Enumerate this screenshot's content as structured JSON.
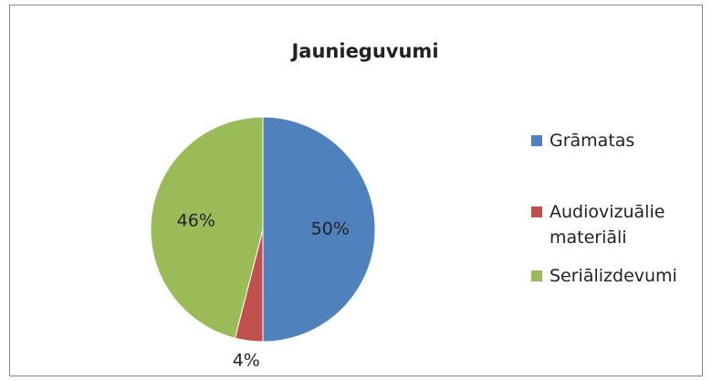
{
  "chart_data": {
    "type": "pie",
    "title": "Jaunieguvumi",
    "categories": [
      "Grāmatas",
      "Audiovizuālie materiāli",
      "Seriālizdevumi"
    ],
    "values": [
      50,
      4,
      46
    ],
    "value_labels": [
      "50%",
      "4%",
      "46%"
    ],
    "colors": [
      "#4f81bd",
      "#c0504d",
      "#9bbb59"
    ],
    "legend": "right"
  }
}
